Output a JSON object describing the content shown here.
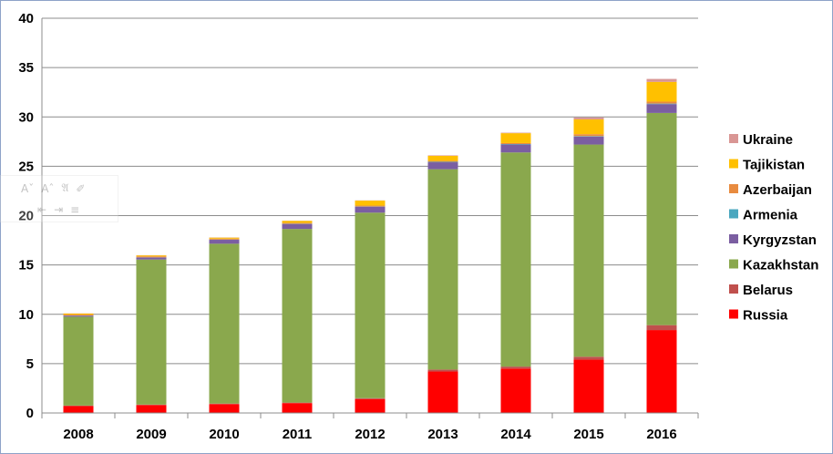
{
  "chart_data": {
    "type": "bar",
    "stacked": true,
    "categories": [
      "2008",
      "2009",
      "2010",
      "2011",
      "2012",
      "2013",
      "2014",
      "2015",
      "2016"
    ],
    "ylim": [
      0,
      40
    ],
    "yticks": [
      "0",
      "5",
      "10",
      "15",
      "20",
      "25",
      "30",
      "35",
      "40"
    ],
    "grid": true,
    "legend_position": "right",
    "series": [
      {
        "name": "Russia",
        "color": "#ff0000",
        "values": [
          0.7,
          0.8,
          0.9,
          1.0,
          1.4,
          4.2,
          4.5,
          5.4,
          8.4
        ]
      },
      {
        "name": "Belarus",
        "color": "#c0504d",
        "values": [
          0.05,
          0.05,
          0.05,
          0.05,
          0.1,
          0.2,
          0.2,
          0.3,
          0.5
        ]
      },
      {
        "name": "Kazakhstan",
        "color": "#8aa84d",
        "values": [
          9.0,
          14.7,
          16.2,
          17.6,
          18.8,
          20.3,
          21.7,
          21.5,
          21.5
        ]
      },
      {
        "name": "Kyrgyzstan",
        "color": "#7b5ea1",
        "values": [
          0.1,
          0.2,
          0.4,
          0.5,
          0.6,
          0.7,
          0.8,
          0.8,
          0.9
        ]
      },
      {
        "name": "Armenia",
        "color": "#4aa7bf",
        "values": [
          0.02,
          0.02,
          0.02,
          0.02,
          0.02,
          0.05,
          0.05,
          0.05,
          0.05
        ]
      },
      {
        "name": "Azerbaijan",
        "color": "#e88b3f",
        "values": [
          0.1,
          0.1,
          0.1,
          0.1,
          0.1,
          0.1,
          0.1,
          0.2,
          0.2
        ]
      },
      {
        "name": "Tajikistan",
        "color": "#ffc000",
        "values": [
          0.1,
          0.1,
          0.1,
          0.2,
          0.5,
          0.5,
          1.0,
          1.5,
          2.0
        ]
      },
      {
        "name": "Ukraine",
        "color": "#d99694",
        "values": [
          0.02,
          0.02,
          0.02,
          0.02,
          0.02,
          0.05,
          0.05,
          0.2,
          0.3
        ]
      }
    ]
  },
  "mini_toolbar": {
    "row1_icons": [
      "font-size-decrease-icon",
      "font-size-increase-icon",
      "font-color-icon",
      "format-painter-icon"
    ],
    "row2_icons": [
      "decrease-indent-icon",
      "increase-indent-icon",
      "bullets-icon"
    ]
  }
}
